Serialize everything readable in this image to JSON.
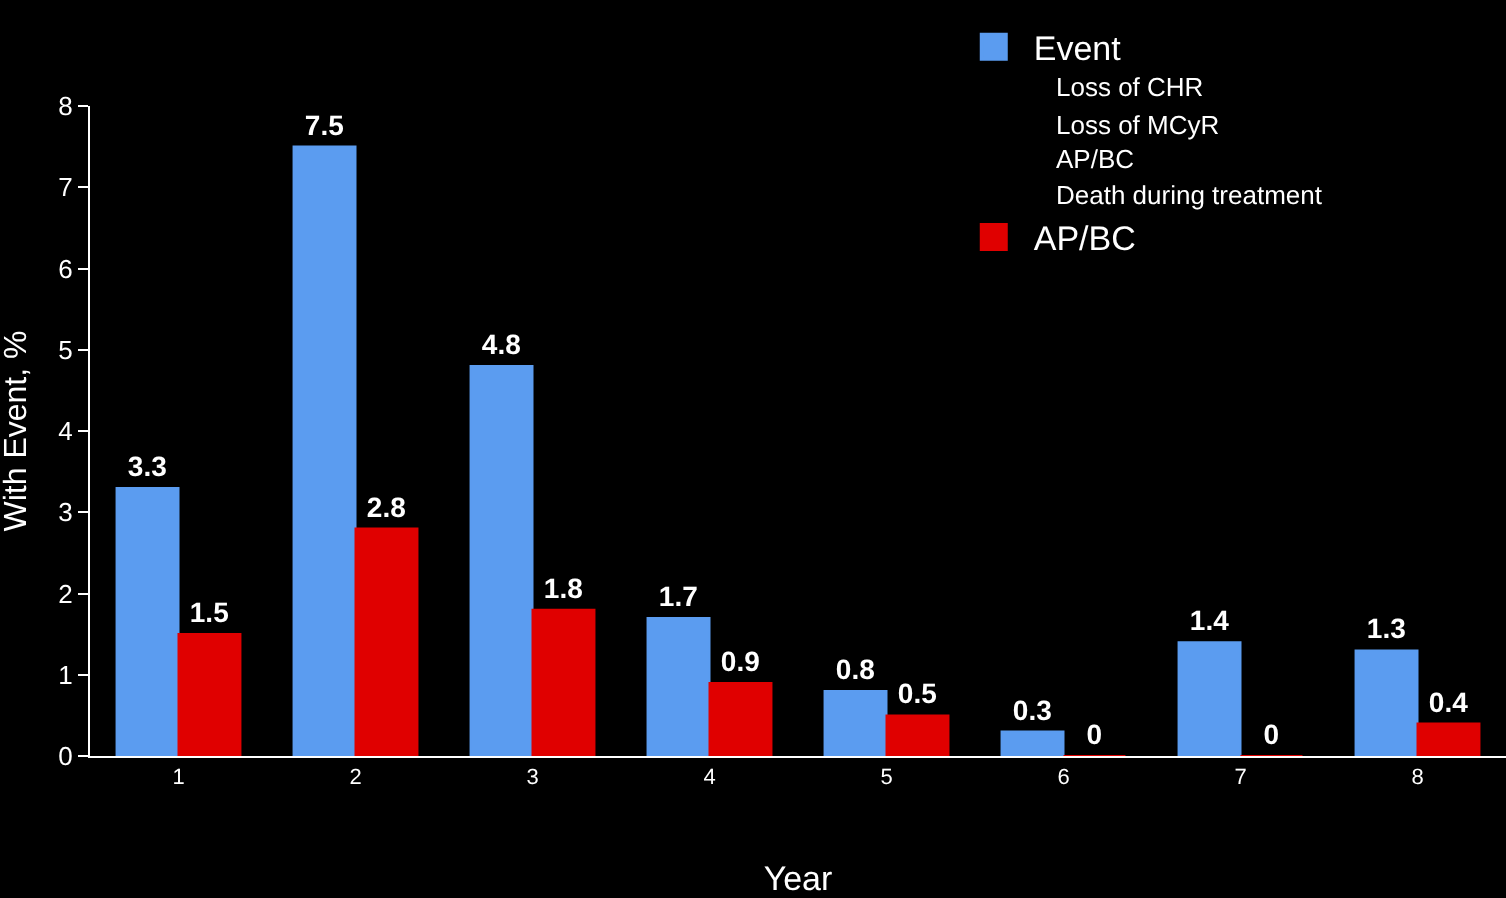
{
  "chart_data": {
    "type": "bar",
    "xlabel": "Year",
    "ylabel": "With Event, %",
    "categories": [
      "1",
      "2",
      "3",
      "4",
      "5",
      "6",
      "7",
      "8"
    ],
    "series": [
      {
        "name": "Event",
        "color": "#5b9cf0",
        "values": [
          3.3,
          7.5,
          4.8,
          1.7,
          0.8,
          0.3,
          1.4,
          1.3
        ]
      },
      {
        "name": "AP/BC",
        "color": "#e00000",
        "values": [
          1.5,
          2.8,
          1.8,
          0.9,
          0.5,
          0,
          0,
          0.4
        ]
      }
    ],
    "annotations": [
      "Loss of CHR",
      "Loss of MCyR",
      "AP/BC",
      "Death during treatment"
    ],
    "ylim": [
      0,
      8
    ],
    "yticks": [
      0,
      1,
      2,
      3,
      4,
      5,
      6,
      7,
      8
    ],
    "data_labels": true,
    "grid": false,
    "legend": "top right"
  }
}
